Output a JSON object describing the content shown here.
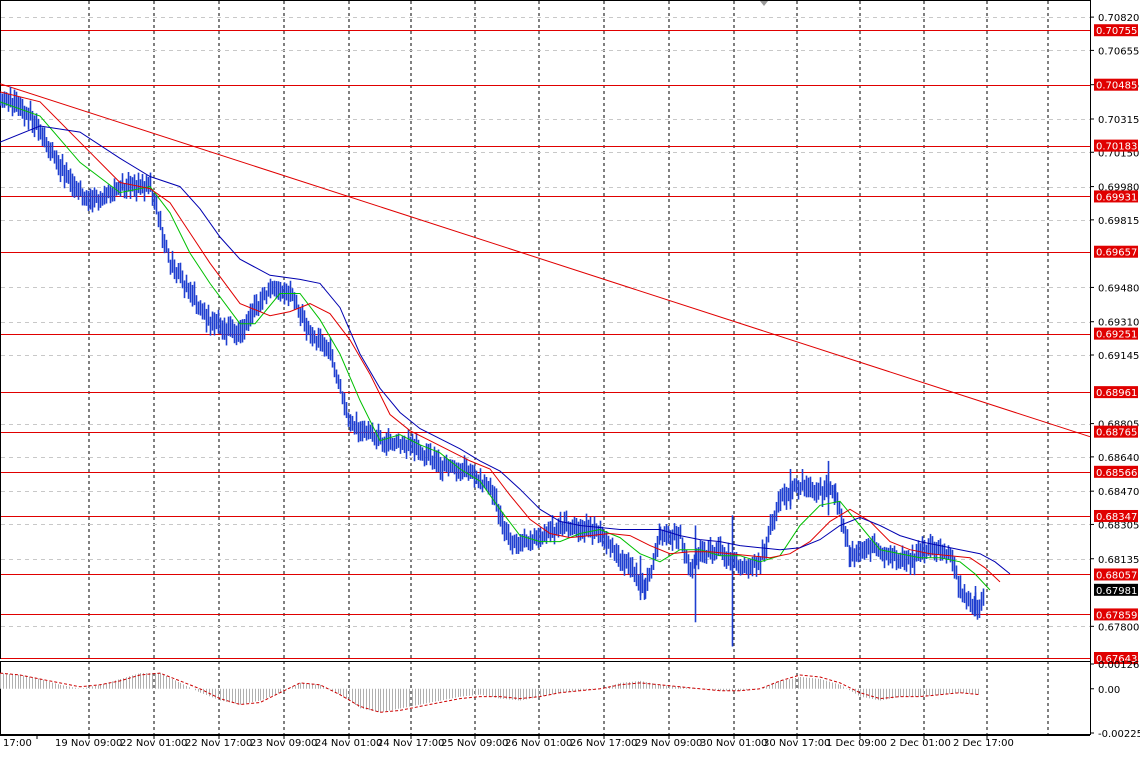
{
  "chart_data": [
    {
      "type": "line",
      "title": "",
      "y_axis_position": "right",
      "grid": true,
      "ylim": [
        0.67643,
        0.70885
      ],
      "y_ticks": [
        "0.70820",
        "0.70655",
        "0.70485",
        "0.70315",
        "0.70150",
        "0.69980",
        "0.69815",
        "0.69480",
        "0.69310",
        "0.69145",
        "0.68805",
        "0.68640",
        "0.68470",
        "0.68305",
        "0.68135",
        "0.67800"
      ],
      "x_labels": [
        "17:00",
        "19 Nov 09:00",
        "22 Nov 01:00",
        "22 Nov 17:00",
        "23 Nov 09:00",
        "24 Nov 01:00",
        "24 Nov 17:00",
        "25 Nov 09:00",
        "26 Nov 01:00",
        "26 Nov 17:00",
        "29 Nov 09:00",
        "30 Nov 01:00",
        "30 Nov 17:00",
        "1 Dec 09:00",
        "2 Dec 01:00",
        "2 Dec 17:00"
      ],
      "x_range": [
        0,
        1090
      ],
      "horizontal_levels": [
        {
          "value": 0.70755,
          "label": "0.70755"
        },
        {
          "value": 0.70485,
          "label": "0.70485"
        },
        {
          "value": 0.70183,
          "label": "0.70183"
        },
        {
          "value": 0.69931,
          "label": "0.69931"
        },
        {
          "value": 0.69657,
          "label": "0.69657"
        },
        {
          "value": 0.69251,
          "label": "0.69251"
        },
        {
          "value": 0.68961,
          "label": "0.68961"
        },
        {
          "value": 0.68765,
          "label": "0.68765"
        },
        {
          "value": 0.68566,
          "label": "0.68566"
        },
        {
          "value": 0.68347,
          "label": "0.68347"
        },
        {
          "value": 0.68057,
          "label": "0.68057"
        },
        {
          "value": 0.67859,
          "label": "0.67859"
        },
        {
          "value": 0.67643,
          "label": "0.67643"
        }
      ],
      "current_price": {
        "value": 0.67981,
        "label": "0.67981"
      },
      "trend_line": {
        "x": [
          0,
          1090
        ],
        "y": [
          0.7049,
          0.6874
        ]
      },
      "series": [
        {
          "style": "price bars",
          "color": "#1f3fd0",
          "x": [
            0,
            30,
            60,
            90,
            120,
            150,
            170,
            210,
            240,
            270,
            290,
            310,
            330,
            350,
            380,
            410,
            440,
            470,
            490,
            510,
            540,
            570,
            600,
            630,
            645,
            660,
            680,
            690,
            700,
            720,
            740,
            760,
            780,
            800,
            820,
            835,
            850,
            870,
            890,
            910,
            930,
            950,
            962,
            975,
            985
          ],
          "y": [
            0.7043,
            0.7033,
            0.7008,
            0.699,
            0.6998,
            0.6998,
            0.696,
            0.693,
            0.6925,
            0.6948,
            0.6945,
            0.6925,
            0.6915,
            0.688,
            0.6872,
            0.687,
            0.686,
            0.6856,
            0.6848,
            0.682,
            0.6825,
            0.683,
            0.6826,
            0.6808,
            0.6798,
            0.6825,
            0.6825,
            0.6808,
            0.6815,
            0.6818,
            0.6808,
            0.6812,
            0.6845,
            0.685,
            0.6847,
            0.6848,
            0.6815,
            0.682,
            0.6815,
            0.6812,
            0.682,
            0.6815,
            0.6795,
            0.679,
            0.6793
          ]
        },
        {
          "style": "line",
          "color": "#00c000",
          "x": [
            0,
            40,
            80,
            120,
            150,
            170,
            190,
            210,
            240,
            255,
            280,
            300,
            320,
            340,
            360,
            380,
            400,
            420,
            440,
            460,
            480,
            500,
            520,
            540,
            560,
            580,
            600,
            620,
            640,
            660,
            680,
            700,
            720,
            740,
            760,
            780,
            800,
            820,
            840,
            860,
            880,
            900,
            920,
            940,
            960,
            975,
            990
          ],
          "y": [
            0.704,
            0.7033,
            0.701,
            0.6995,
            0.6998,
            0.6985,
            0.6965,
            0.695,
            0.693,
            0.693,
            0.6945,
            0.6945,
            0.6932,
            0.6915,
            0.6892,
            0.6872,
            0.6875,
            0.687,
            0.6866,
            0.6858,
            0.6852,
            0.6838,
            0.6825,
            0.6822,
            0.6822,
            0.6826,
            0.6828,
            0.6824,
            0.6816,
            0.6812,
            0.6818,
            0.6818,
            0.6815,
            0.6815,
            0.6812,
            0.6815,
            0.683,
            0.684,
            0.6842,
            0.683,
            0.6818,
            0.6816,
            0.6814,
            0.6814,
            0.6812,
            0.6806,
            0.6798
          ]
        },
        {
          "style": "line",
          "color": "#e00000",
          "x": [
            0,
            40,
            80,
            120,
            150,
            170,
            190,
            210,
            240,
            270,
            290,
            310,
            330,
            350,
            370,
            390,
            410,
            430,
            450,
            470,
            490,
            510,
            530,
            550,
            570,
            590,
            610,
            630,
            650,
            670,
            690,
            710,
            730,
            750,
            770,
            790,
            810,
            830,
            850,
            870,
            890,
            910,
            930,
            950,
            970,
            985,
            1000
          ],
          "y": [
            0.7045,
            0.704,
            0.702,
            0.7,
            0.6997,
            0.699,
            0.6975,
            0.696,
            0.694,
            0.6934,
            0.6936,
            0.694,
            0.6935,
            0.6922,
            0.6905,
            0.6885,
            0.6877,
            0.6872,
            0.6867,
            0.6862,
            0.6858,
            0.6845,
            0.6833,
            0.6826,
            0.6824,
            0.6825,
            0.6826,
            0.6825,
            0.682,
            0.6816,
            0.6817,
            0.6817,
            0.6816,
            0.6815,
            0.6814,
            0.6816,
            0.6822,
            0.6832,
            0.6838,
            0.6832,
            0.6822,
            0.6818,
            0.6816,
            0.6815,
            0.6814,
            0.6809,
            0.6802
          ]
        },
        {
          "style": "line",
          "color": "#0000b0",
          "x": [
            0,
            40,
            80,
            120,
            150,
            180,
            200,
            220,
            240,
            270,
            300,
            320,
            340,
            360,
            380,
            400,
            420,
            440,
            460,
            480,
            500,
            520,
            540,
            560,
            580,
            600,
            620,
            640,
            660,
            680,
            700,
            720,
            740,
            760,
            780,
            800,
            820,
            840,
            860,
            880,
            900,
            920,
            940,
            960,
            980,
            995,
            1010
          ],
          "y": [
            0.702,
            0.7028,
            0.7025,
            0.7012,
            0.7003,
            0.6998,
            0.6987,
            0.6973,
            0.6962,
            0.6954,
            0.6952,
            0.695,
            0.6938,
            0.6915,
            0.6898,
            0.6886,
            0.6878,
            0.6873,
            0.6868,
            0.6862,
            0.6857,
            0.6848,
            0.6838,
            0.6832,
            0.683,
            0.6829,
            0.6828,
            0.6828,
            0.6828,
            0.6825,
            0.6823,
            0.6822,
            0.682,
            0.6819,
            0.6818,
            0.6819,
            0.6823,
            0.683,
            0.6834,
            0.683,
            0.6825,
            0.6822,
            0.682,
            0.6818,
            0.6816,
            0.6812,
            0.6806
          ]
        }
      ]
    },
    {
      "type": "bar",
      "title": "",
      "y_axis_position": "right",
      "y_ticks": [
        "0.001262",
        "0.00",
        "-0.002253"
      ],
      "ylim": [
        -0.002253,
        0.001262
      ],
      "series": [
        {
          "name": "",
          "style": "histogram",
          "color": "#b0b0b0",
          "x": [
            0,
            20,
            40,
            60,
            80,
            100,
            120,
            140,
            160,
            180,
            200,
            220,
            240,
            260,
            280,
            300,
            320,
            340,
            360,
            380,
            400,
            420,
            440,
            460,
            480,
            500,
            520,
            540,
            560,
            580,
            600,
            620,
            640,
            660,
            680,
            700,
            720,
            740,
            760,
            780,
            800,
            820,
            840,
            860,
            880,
            900,
            920,
            940,
            960,
            980
          ],
          "values": [
            0.0008,
            0.0007,
            0.0005,
            0.0002,
            0.0,
            0.0002,
            0.0005,
            0.0008,
            0.0008,
            0.0003,
            -0.0002,
            -0.0006,
            -0.0008,
            -0.0006,
            -0.0002,
            0.0003,
            0.0002,
            -0.0003,
            -0.001,
            -0.0012,
            -0.001,
            -0.0008,
            -0.0006,
            -0.0004,
            -0.0003,
            -0.0005,
            -0.0006,
            -0.0004,
            -0.0002,
            -0.0001,
            0.0,
            0.0003,
            0.0004,
            0.0002,
            0.0001,
            0.0,
            -0.0001,
            -0.0001,
            0.0,
            0.0004,
            0.0006,
            0.0005,
            0.0002,
            -0.0004,
            -0.0006,
            -0.0004,
            -0.0004,
            -0.0003,
            -0.0002,
            -0.0003
          ]
        },
        {
          "name": "",
          "style": "signal-dashed",
          "color": "#cc0000",
          "x": [
            0,
            20,
            40,
            60,
            80,
            100,
            120,
            140,
            160,
            180,
            200,
            220,
            240,
            260,
            280,
            300,
            320,
            340,
            360,
            380,
            400,
            420,
            440,
            460,
            480,
            500,
            520,
            540,
            560,
            580,
            600,
            620,
            640,
            660,
            680,
            700,
            720,
            740,
            760,
            780,
            800,
            820,
            840,
            860,
            880,
            900,
            920,
            940,
            960,
            980
          ],
          "values": [
            0.0008,
            0.0007,
            0.0005,
            0.0003,
            0.0001,
            0.0002,
            0.0004,
            0.0007,
            0.0008,
            0.0004,
            0.0,
            -0.0005,
            -0.0008,
            -0.0007,
            -0.0002,
            0.0003,
            0.0002,
            -0.0003,
            -0.0009,
            -0.0012,
            -0.0011,
            -0.0009,
            -0.0007,
            -0.0005,
            -0.0004,
            -0.0004,
            -0.0005,
            -0.0004,
            -0.0002,
            -0.0001,
            0.0,
            0.0002,
            0.0003,
            0.0002,
            0.0001,
            0.0,
            -0.0001,
            -0.0001,
            0.0,
            0.0004,
            0.0007,
            0.0006,
            0.0003,
            -0.0002,
            -0.0005,
            -0.0004,
            -0.0004,
            -0.0003,
            -0.0002,
            -0.0003
          ]
        }
      ]
    }
  ]
}
